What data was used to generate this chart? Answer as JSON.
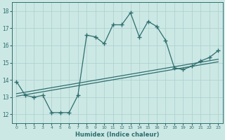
{
  "x": [
    0,
    1,
    2,
    3,
    4,
    5,
    6,
    7,
    8,
    9,
    10,
    11,
    12,
    13,
    14,
    15,
    16,
    17,
    18,
    19,
    20,
    21,
    22,
    23
  ],
  "y_main": [
    13.9,
    13.1,
    13.0,
    13.1,
    12.1,
    12.1,
    12.1,
    13.1,
    16.6,
    16.5,
    16.1,
    17.2,
    17.2,
    17.9,
    16.5,
    17.4,
    17.1,
    16.3,
    14.7,
    14.6,
    14.8,
    15.1,
    15.3,
    15.7
  ],
  "line_color": "#2e6e6e",
  "bg_color": "#cce8e5",
  "grid_color": "#aacfcc",
  "xlabel": "Humidex (Indice chaleur)",
  "xlim": [
    -0.5,
    23.5
  ],
  "ylim": [
    11.5,
    18.5
  ],
  "yticks": [
    12,
    13,
    14,
    15,
    16,
    17,
    18
  ],
  "xticks": [
    0,
    1,
    2,
    3,
    4,
    5,
    6,
    7,
    8,
    9,
    10,
    11,
    12,
    13,
    14,
    15,
    16,
    17,
    18,
    19,
    20,
    21,
    22,
    23
  ],
  "trend1_start": 13.05,
  "trend1_end": 15.05,
  "trend2_start": 13.2,
  "trend2_end": 15.2
}
